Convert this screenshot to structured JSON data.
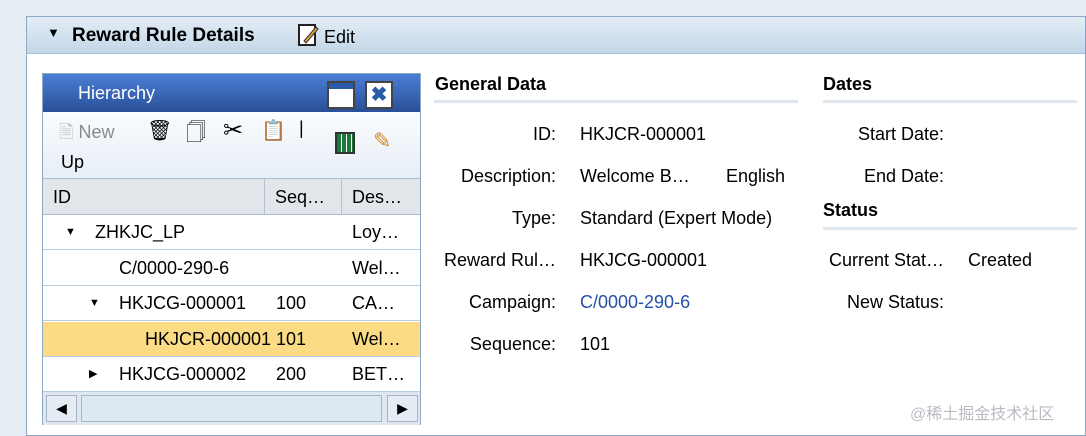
{
  "header": {
    "title": "Reward Rule Details",
    "edit_label": "Edit",
    "collapse_icon": "triangle-down-icon",
    "edit_icon": "edit-document-icon"
  },
  "hierarchy": {
    "title": "Hierarchy",
    "toolbar": {
      "new_label": "New",
      "up_label": "Up",
      "icons": [
        "new-icon",
        "delete-icon",
        "copy-icon",
        "cut-icon",
        "paste-icon",
        "export-excel-icon",
        "pencil-icon"
      ]
    },
    "columns": [
      "ID",
      "Seq…",
      "Des…"
    ],
    "rows": [
      {
        "id": "ZHKJC_LP",
        "seq": "",
        "desc": "Loy…",
        "expander": "expanded"
      },
      {
        "id": "C/0000-290-6",
        "seq": "",
        "desc": "Wel…",
        "expander": "none"
      },
      {
        "id": "HKJCG-000001",
        "seq": "100",
        "desc": "CA…",
        "expander": "expanded"
      },
      {
        "id": "HKJCR-000001",
        "seq": "101",
        "desc": "Wel…",
        "expander": "none",
        "selected": true
      },
      {
        "id": "HKJCG-000002",
        "seq": "200",
        "desc": "BET…",
        "expander": "collapsed"
      }
    ],
    "selected_color": "#fbdc85"
  },
  "general": {
    "title": "General Data",
    "fields": [
      {
        "label": "ID:",
        "value": "HKJCR-000001"
      },
      {
        "label": "Description:",
        "value": "Welcome B…",
        "extra": "English"
      },
      {
        "label": "Type:",
        "value": "Standard (Expert Mode)"
      },
      {
        "label": "Reward Rul…",
        "value": "HKJCG-000001"
      },
      {
        "label": "Campaign:",
        "value": "C/0000-290-6",
        "link": true
      },
      {
        "label": "Sequence:",
        "value": "101"
      }
    ],
    "link_color": "#2650a8"
  },
  "dates": {
    "title": "Dates",
    "start_label": "Start Date:",
    "end_label": "End Date:"
  },
  "status": {
    "title": "Status",
    "current_label": "Current Stat…",
    "current_value": "Created",
    "new_label": "New Status:"
  },
  "watermark": "@稀土掘金技术社区"
}
